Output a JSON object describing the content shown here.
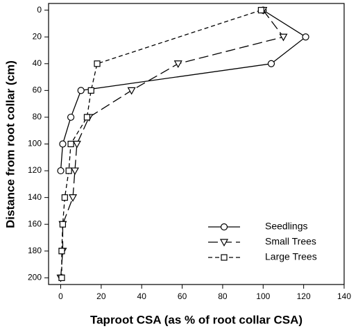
{
  "chart_data": {
    "type": "line",
    "x_label": "Taproot CSA (as % of root collar CSA)",
    "y_label": "Distance from root collar (cm)",
    "xlim": [
      -6,
      140
    ],
    "xticks": [
      0,
      20,
      40,
      60,
      80,
      100,
      120,
      140
    ],
    "ylim": [
      -5,
      205
    ],
    "yticks": [
      0,
      20,
      40,
      60,
      80,
      100,
      120,
      140,
      160,
      180,
      200
    ],
    "y_inverted": true,
    "legend": "lower right",
    "series": [
      {
        "name": "Seedlings",
        "color": "#000000",
        "marker": "circle",
        "dash": "solid",
        "x": [
          100,
          121,
          104,
          10,
          5,
          1,
          0
        ],
        "y": [
          0,
          20,
          40,
          60,
          80,
          100,
          120
        ]
      },
      {
        "name": "Small Trees",
        "color": "#000000",
        "marker": "triangle-down",
        "dash": "long",
        "x": [
          100,
          110,
          58,
          35,
          14,
          8,
          7,
          6,
          1,
          1,
          0
        ],
        "y": [
          0,
          20,
          40,
          60,
          80,
          100,
          120,
          140,
          160,
          180,
          200
        ]
      },
      {
        "name": "Large Trees",
        "color": "#000000",
        "marker": "square",
        "dash": "short",
        "x": [
          99,
          18,
          15,
          13,
          5,
          4,
          2,
          1,
          0.5,
          0.5
        ],
        "y": [
          0,
          40,
          60,
          80,
          100,
          120,
          140,
          160,
          180,
          200
        ]
      }
    ]
  }
}
